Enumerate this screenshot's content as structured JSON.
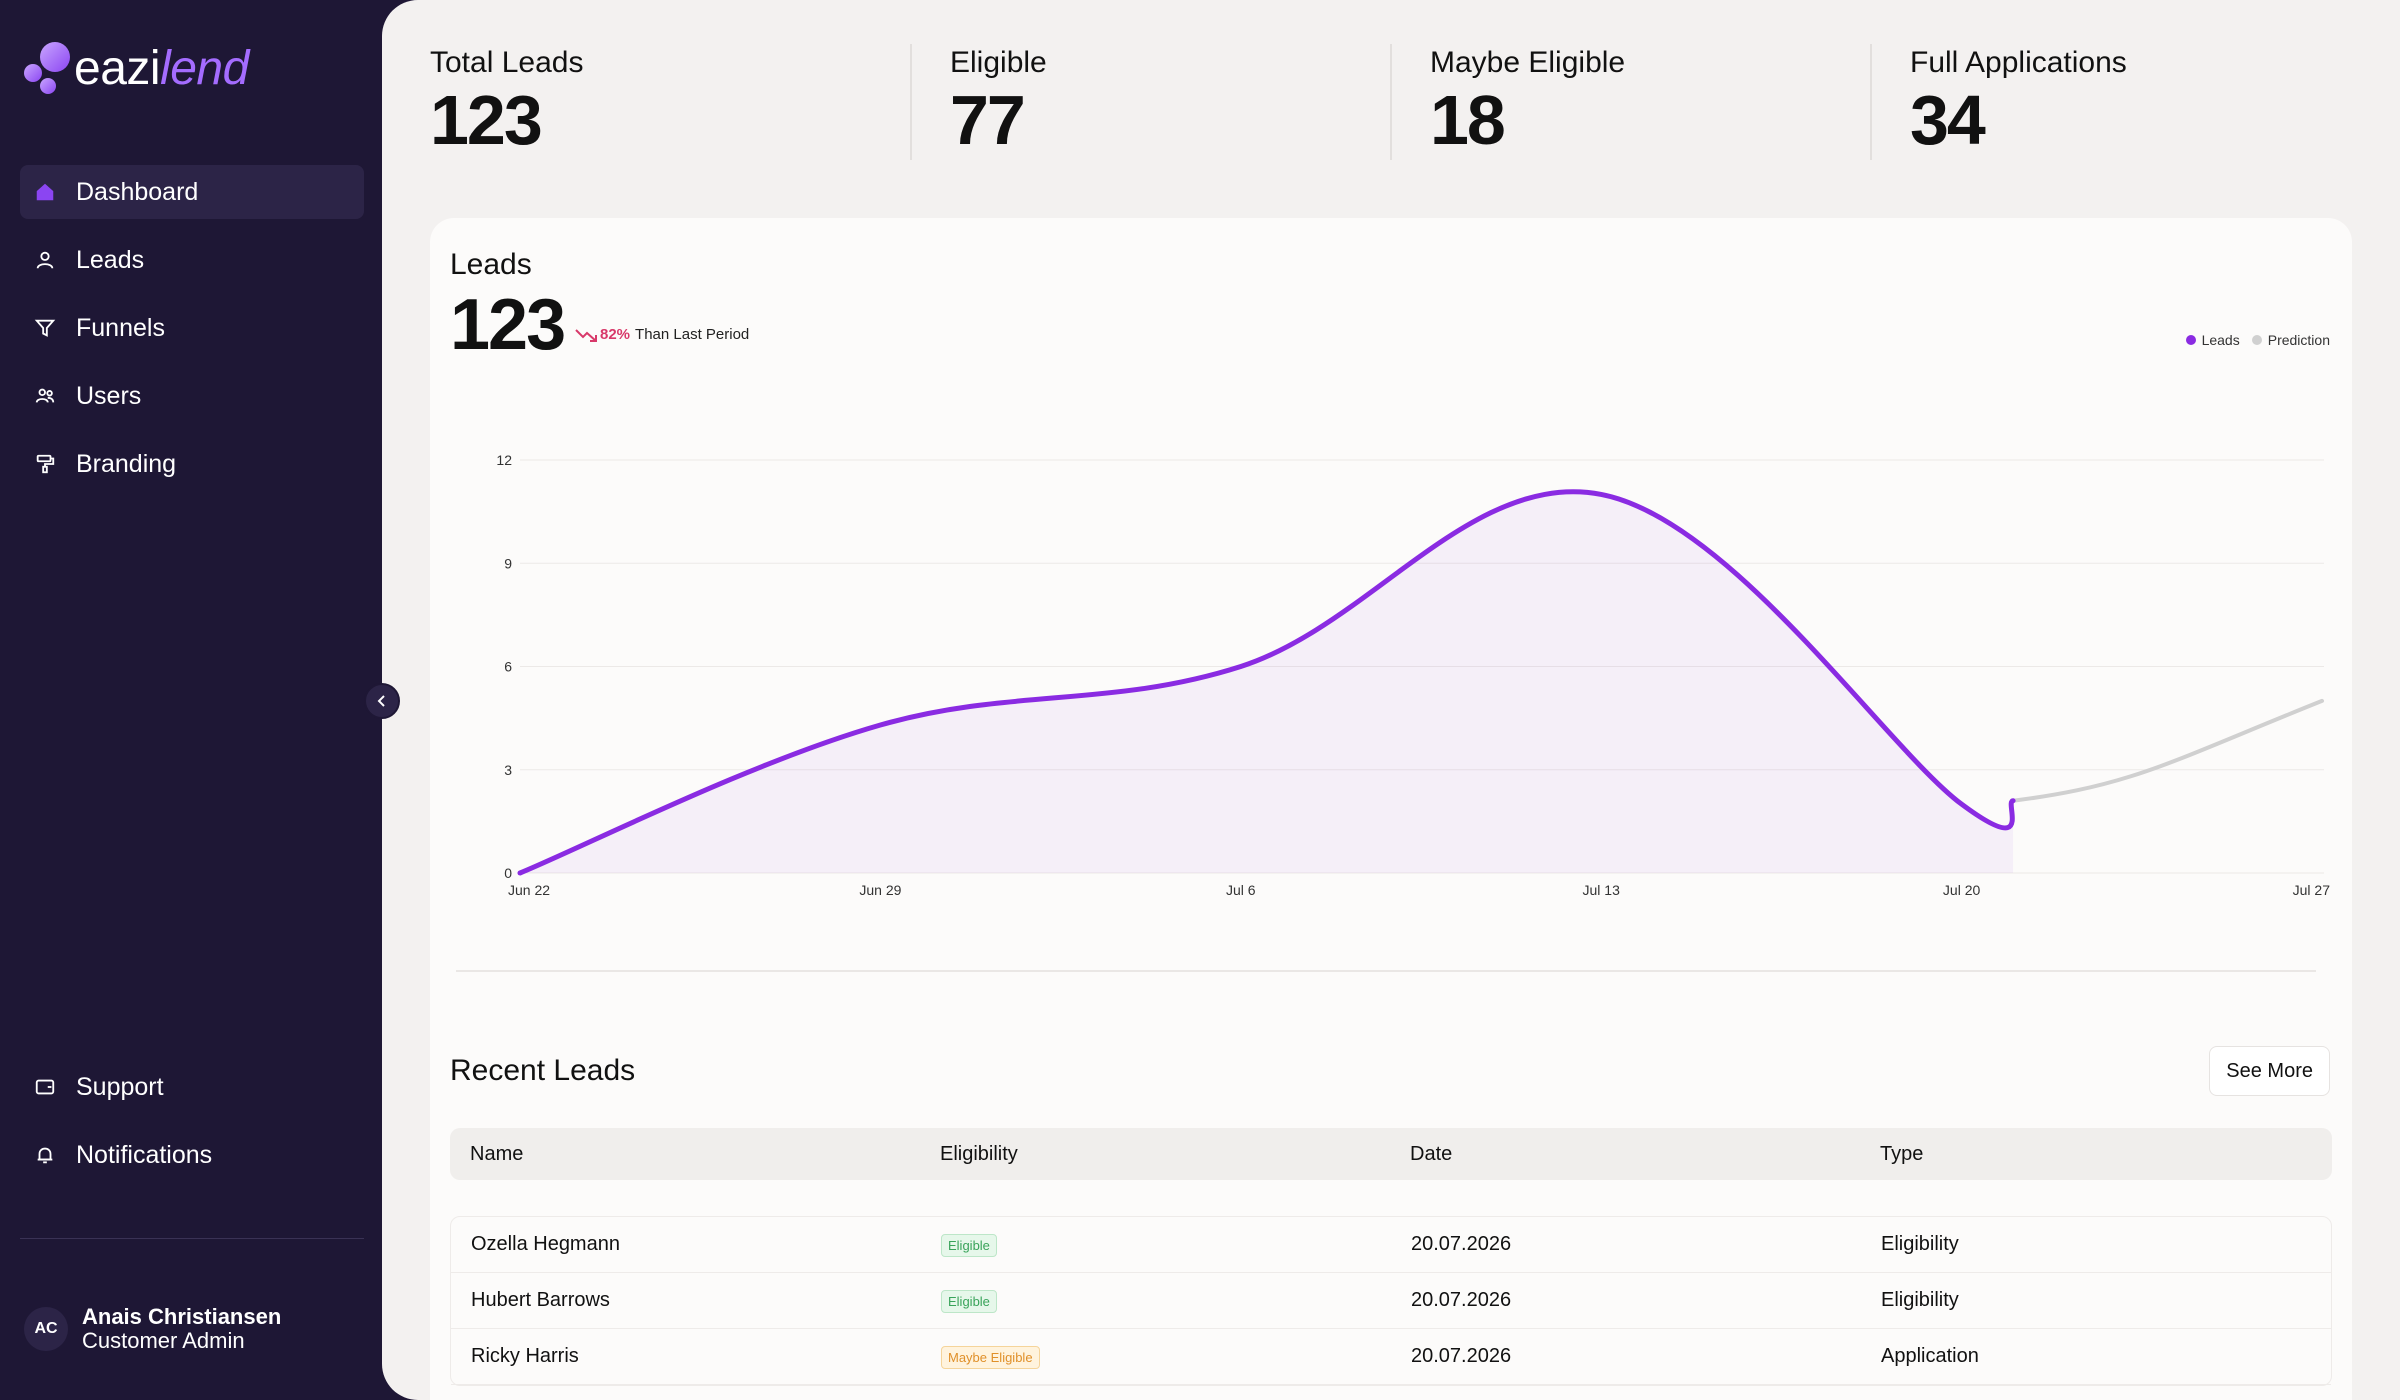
{
  "brand": {
    "name_main": "eazi",
    "name_accent": "lend"
  },
  "nav": {
    "items": [
      {
        "label": "Dashboard",
        "icon": "home-icon",
        "active": true
      },
      {
        "label": "Leads",
        "icon": "user-icon"
      },
      {
        "label": "Funnels",
        "icon": "filter-icon"
      },
      {
        "label": "Users",
        "icon": "users-icon"
      },
      {
        "label": "Branding",
        "icon": "paint-roller-icon"
      }
    ],
    "bottom_items": [
      {
        "label": "Support",
        "icon": "support-icon"
      },
      {
        "label": "Notifications",
        "icon": "bell-icon"
      }
    ]
  },
  "user": {
    "initials": "AC",
    "name": "Anais Christiansen",
    "role": "Customer Admin"
  },
  "stats": [
    {
      "label": "Total Leads",
      "value": "123"
    },
    {
      "label": "Eligible",
      "value": "77"
    },
    {
      "label": "Maybe Eligible",
      "value": "18"
    },
    {
      "label": "Full Applications",
      "value": "34"
    }
  ],
  "leads_card": {
    "title": "Leads",
    "total": "123",
    "trend_pct": "82%",
    "trend_text": "Than Last Period",
    "legend": [
      {
        "label": "Leads",
        "color": "#8a2be2"
      },
      {
        "label": "Prediction",
        "color": "#d0d0d0"
      }
    ]
  },
  "chart_data": {
    "type": "line",
    "x": [
      "Jun 22",
      "Jun 29",
      "Jul 6",
      "Jul 13",
      "Jul 20",
      "Jul 27"
    ],
    "ylim": [
      0,
      12
    ],
    "yticks": [
      0,
      3,
      6,
      9,
      12
    ],
    "grid": true,
    "legend_position": "top-right",
    "series": [
      {
        "name": "Leads",
        "color": "#8a2be2",
        "x": [
          "Jun 22",
          "Jun 29",
          "Jul 6",
          "Jul 13",
          "Jul 20",
          "Jul 21"
        ],
        "values": [
          0,
          4.3,
          6,
          11,
          2,
          2.1
        ]
      },
      {
        "name": "Prediction",
        "color": "#d0d0d0",
        "x": [
          "Jul 21",
          "Jul 27"
        ],
        "values": [
          2.1,
          5
        ]
      }
    ]
  },
  "recent": {
    "title": "Recent Leads",
    "see_more": "See More",
    "columns": [
      "Name",
      "Eligibility",
      "Date",
      "Type"
    ],
    "rows": [
      {
        "name": "Ozella Hegmann",
        "eligibility": "Eligible",
        "status": "eligible",
        "date": "20.07.2026",
        "type": "Eligibility"
      },
      {
        "name": "Hubert Barrows",
        "eligibility": "Eligible",
        "status": "eligible",
        "date": "20.07.2026",
        "type": "Eligibility"
      },
      {
        "name": "Ricky Harris",
        "eligibility": "Maybe Eligible",
        "status": "maybe",
        "date": "20.07.2026",
        "type": "Application"
      }
    ]
  }
}
